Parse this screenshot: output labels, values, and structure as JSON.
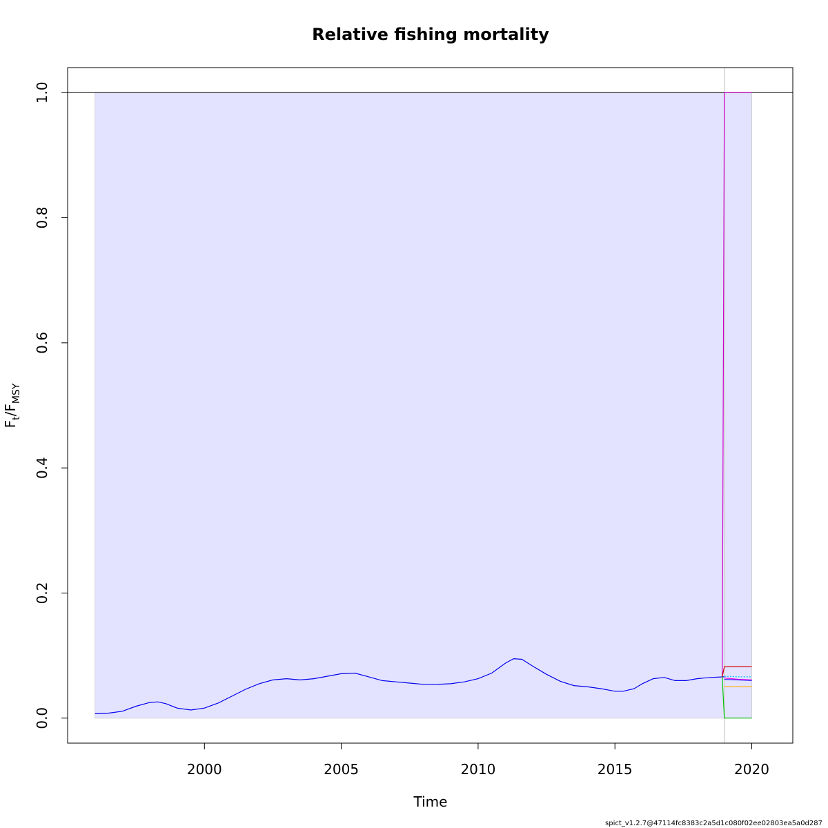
{
  "chart_data": {
    "type": "line",
    "title": "Relative fishing mortality",
    "xlabel": "Time",
    "ylabel_main": "F",
    "ylabel_sub1": "t",
    "ylabel_slash": "/F",
    "ylabel_sub2": "MSY",
    "footer": "spict_v1.2.7@47114fc8383c2a5d1c080f02ee02803ea5a0d287",
    "xlim": [
      1995.0,
      2021.5
    ],
    "ylim": [
      -0.04,
      1.04
    ],
    "xticks": [
      2000,
      2005,
      2010,
      2015,
      2020
    ],
    "yticks": [
      0.0,
      0.2,
      0.4,
      0.6,
      0.8,
      1.0
    ],
    "ytick_labels": [
      "0.0",
      "0.2",
      "0.4",
      "0.6",
      "0.8",
      "1.0"
    ],
    "reference_line": 1.0,
    "shaded_band": {
      "x_start": 1996,
      "x_end": 2020,
      "lower": 0.0,
      "upper": 1.0,
      "color": "#e3e3ff"
    },
    "forecast_start": 2019,
    "colors": {
      "main": "#0000ee",
      "upper_forecast": "#c71585",
      "lower_forecast": "#00c000",
      "magenta": "#cc00cc",
      "orange": "#ffb000",
      "dotted_cyan": "#00bfff",
      "red": "#d00000",
      "blue_small": "#3333ff"
    },
    "series": [
      {
        "key": "estimate",
        "color": "#0000ee",
        "x": [
          1996.0,
          1996.5,
          1997.0,
          1997.5,
          1998.0,
          1998.3,
          1998.6,
          1999.0,
          1999.5,
          2000.0,
          2000.5,
          2001.0,
          2001.5,
          2002.0,
          2002.5,
          2003.0,
          2003.5,
          2004.0,
          2004.5,
          2005.0,
          2005.5,
          2006.0,
          2006.5,
          2007.0,
          2007.5,
          2008.0,
          2008.5,
          2009.0,
          2009.5,
          2010.0,
          2010.5,
          2011.0,
          2011.3,
          2011.6,
          2012.0,
          2012.5,
          2013.0,
          2013.5,
          2014.0,
          2014.5,
          2015.0,
          2015.3,
          2015.7,
          2016.0,
          2016.4,
          2016.8,
          2017.2,
          2017.6,
          2018.0,
          2018.5,
          2019.0
        ],
        "y": [
          0.007,
          0.008,
          0.011,
          0.019,
          0.025,
          0.026,
          0.023,
          0.016,
          0.013,
          0.016,
          0.024,
          0.035,
          0.046,
          0.055,
          0.061,
          0.063,
          0.061,
          0.063,
          0.067,
          0.071,
          0.072,
          0.066,
          0.06,
          0.058,
          0.056,
          0.054,
          0.054,
          0.055,
          0.058,
          0.063,
          0.072,
          0.088,
          0.095,
          0.094,
          0.083,
          0.07,
          0.059,
          0.052,
          0.05,
          0.047,
          0.043,
          0.043,
          0.047,
          0.055,
          0.063,
          0.065,
          0.06,
          0.06,
          0.063,
          0.065,
          0.066
        ]
      },
      {
        "key": "upper_ci",
        "color": "#cc00cc",
        "x": [
          2018.92,
          2019.0,
          2019.5,
          2020.0
        ],
        "y": [
          0.066,
          1.0,
          1.0,
          1.0
        ]
      },
      {
        "key": "red_forecast",
        "color": "#d00000",
        "x": [
          2018.92,
          2019.0,
          2019.5,
          2020.0
        ],
        "y": [
          0.066,
          0.082,
          0.082,
          0.082
        ]
      },
      {
        "key": "dotted_forecast",
        "color": "#00bfff",
        "x": [
          2019.0,
          2019.5,
          2020.0
        ],
        "y": [
          0.067,
          0.066,
          0.066
        ]
      },
      {
        "key": "magenta_small",
        "color": "#ee00ee",
        "x": [
          2019.0,
          2019.5,
          2020.0
        ],
        "y": [
          0.064,
          0.062,
          0.061
        ]
      },
      {
        "key": "blue_forecast",
        "color": "#3333ff",
        "x": [
          2019.0,
          2019.5,
          2020.0
        ],
        "y": [
          0.062,
          0.061,
          0.06
        ]
      },
      {
        "key": "orange_forecast",
        "color": "#ffb000",
        "x": [
          2019.0,
          2019.5,
          2020.0
        ],
        "y": [
          0.05,
          0.05,
          0.05
        ]
      },
      {
        "key": "green_forecast",
        "color": "#00c000",
        "x": [
          2018.92,
          2019.0,
          2019.5,
          2020.0
        ],
        "y": [
          0.066,
          0.0,
          0.0,
          0.0
        ]
      }
    ]
  }
}
